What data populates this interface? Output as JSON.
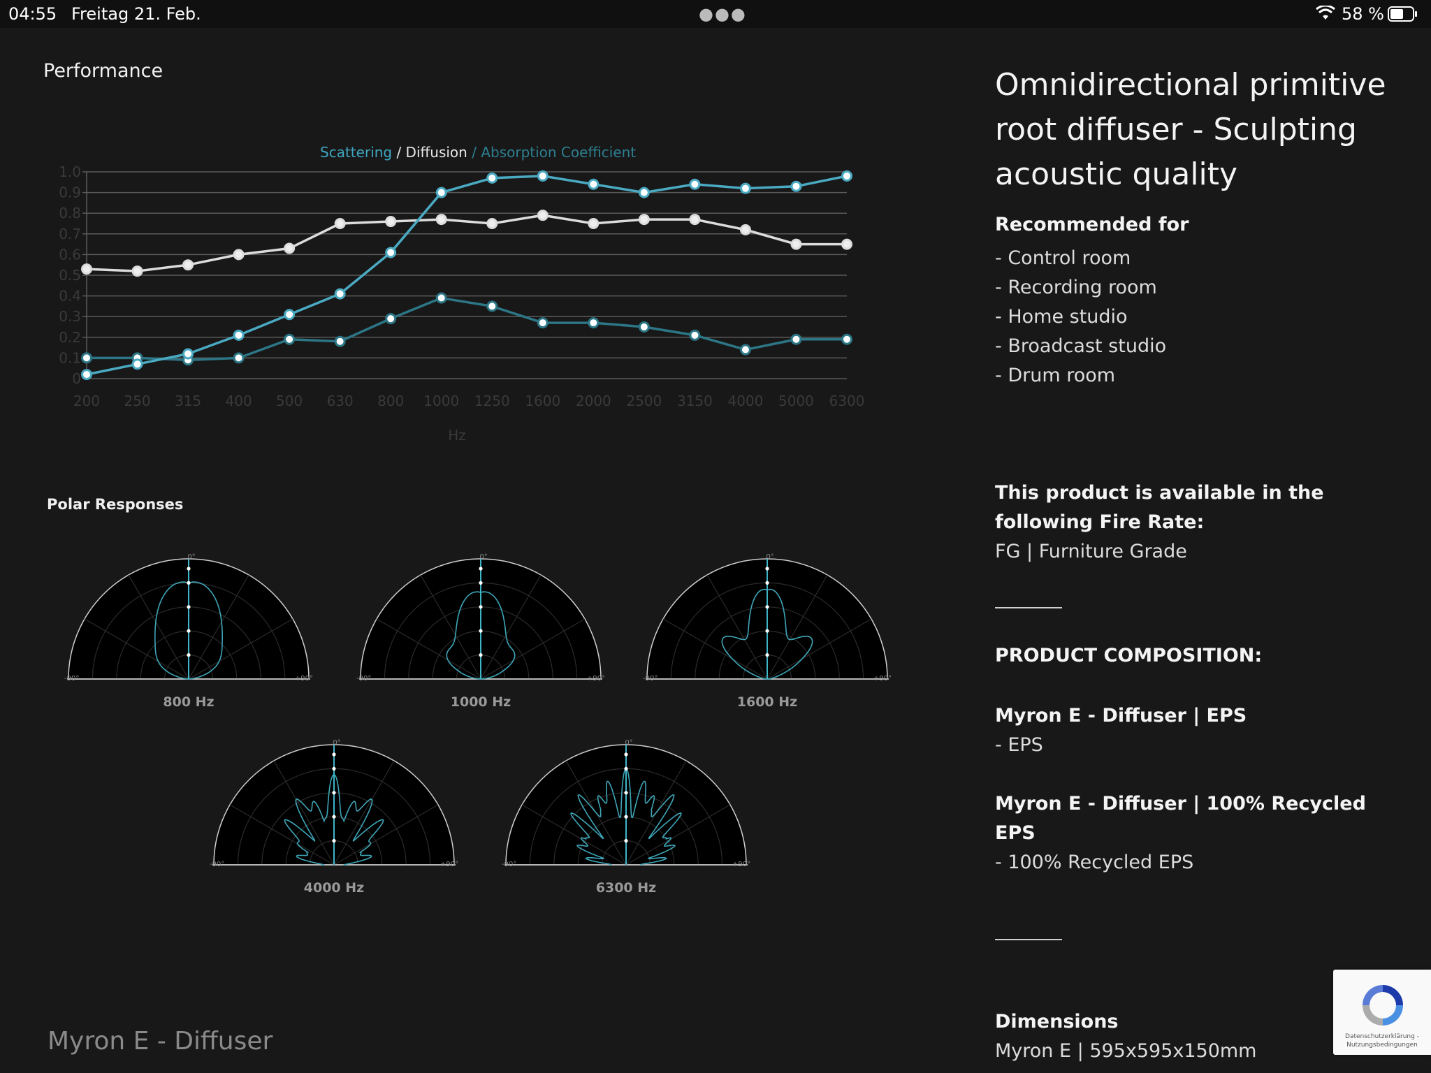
{
  "status_bar": {
    "time": "04:55",
    "date": "Freitag 21. Feb.",
    "battery": "58 %"
  },
  "performance": {
    "title": "Performance"
  },
  "chart_data": {
    "type": "line",
    "legend": [
      {
        "text": "Scattering",
        "color": "#3fa6c0"
      },
      {
        "text": " / Diffusion",
        "color": "#e8e8e8"
      },
      {
        "text": " / Absorption Coefficient",
        "color": "#2e7f90"
      }
    ],
    "x": [
      "200",
      "250",
      "315",
      "400",
      "500",
      "630",
      "800",
      "1000",
      "1250",
      "1600",
      "2000",
      "2500",
      "3150",
      "4000",
      "5000",
      "6300"
    ],
    "xlabel": "Hz",
    "ylim": [
      0,
      1.0
    ],
    "yticks": [
      "0",
      "0.1",
      "0.2",
      "0.3",
      "0.4",
      "0.5",
      "0.6",
      "0.7",
      "0.8",
      "0.9",
      "1.0"
    ],
    "series": [
      {
        "name": "Scattering",
        "color": "#4aaac2",
        "values": [
          0.02,
          0.07,
          0.12,
          0.21,
          0.31,
          0.41,
          0.61,
          0.9,
          0.97,
          0.98,
          0.94,
          0.9,
          0.94,
          0.92,
          0.93,
          0.98
        ]
      },
      {
        "name": "Diffusion",
        "color": "#dcdcdc",
        "values": [
          0.53,
          0.52,
          0.55,
          0.6,
          0.63,
          0.75,
          0.76,
          0.77,
          0.75,
          0.79,
          0.75,
          0.77,
          0.77,
          0.72,
          0.65,
          0.65
        ]
      },
      {
        "name": "Absorption Coefficient",
        "color": "#2c7686",
        "values": [
          0.1,
          0.1,
          0.09,
          0.1,
          0.19,
          0.18,
          0.29,
          0.39,
          0.35,
          0.27,
          0.27,
          0.25,
          0.21,
          0.14,
          0.19,
          0.19
        ]
      }
    ]
  },
  "polar": {
    "title": "Polar Responses",
    "angle_top": "0°",
    "angle_left": "-90°",
    "angle_right": "+90°",
    "charts": [
      {
        "label": "800 Hz",
        "pattern": 1
      },
      {
        "label": "1000 Hz",
        "pattern": 2
      },
      {
        "label": "1600 Hz",
        "pattern": 3
      },
      {
        "label": "4000 Hz",
        "pattern": 4
      },
      {
        "label": "6300 Hz",
        "pattern": 5
      }
    ]
  },
  "footer": {
    "product_name": "Myron E - Diffuser"
  },
  "details": {
    "title": "Omnidirectional primitive root diffuser - Sculpting acoustic quality",
    "recommended_heading": "Recommended for",
    "recommended": [
      "- Control room",
      "- Recording room",
      "- Home studio",
      "- Broadcast studio",
      "- Drum room"
    ],
    "availability_heading": "This product is available in the following Fire Rate:",
    "fire_rate": "FG | Furniture Grade",
    "composition_heading": "PRODUCT COMPOSITION:",
    "composition": [
      {
        "name": "Myron E - Diffuser | EPS",
        "material": "- EPS"
      },
      {
        "name": "Myron E - Diffuser | 100% Recycled EPS",
        "material": "- 100% Recycled EPS"
      }
    ],
    "dimensions_heading": "Dimensions",
    "dimensions": "Myron E | 595x595x150mm"
  },
  "recaptcha": {
    "text": "Datenschutzerklärung - Nutzungsbedingungen"
  }
}
